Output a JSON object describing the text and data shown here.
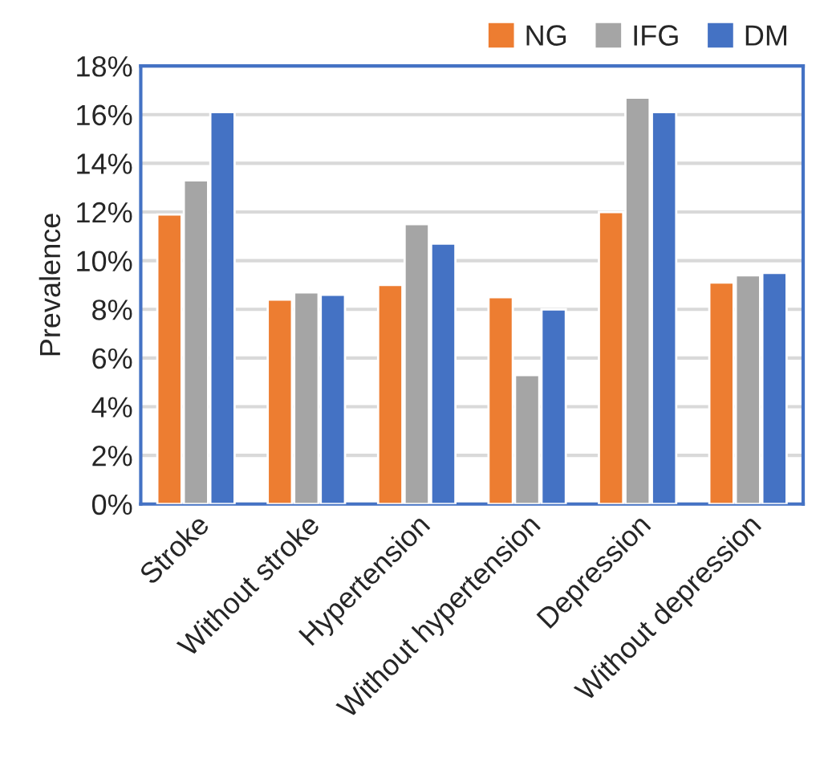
{
  "chart_data": {
    "type": "bar",
    "ylabel": "Prevalence",
    "categories": [
      "Stroke",
      "Without stroke",
      "Hypertension",
      "Without hypertension",
      "Depression",
      "Without depression"
    ],
    "series": [
      {
        "name": "NG",
        "color": "#ed7d31",
        "values": [
          11.9,
          8.4,
          9.0,
          8.5,
          12.0,
          9.1
        ]
      },
      {
        "name": "IFG",
        "color": "#a5a5a5",
        "values": [
          13.3,
          8.7,
          11.5,
          5.3,
          16.7,
          9.4
        ]
      },
      {
        "name": "DM",
        "color": "#4472c4",
        "values": [
          16.1,
          8.6,
          10.7,
          8.0,
          16.1,
          9.5
        ]
      }
    ],
    "ylim": [
      0,
      18
    ],
    "yticks": [
      {
        "value": 0,
        "label": "0%"
      },
      {
        "value": 2,
        "label": "2%"
      },
      {
        "value": 4,
        "label": "4%"
      },
      {
        "value": 6,
        "label": "6%"
      },
      {
        "value": 8,
        "label": "8%"
      },
      {
        "value": 10,
        "label": "10%"
      },
      {
        "value": 12,
        "label": "12%"
      },
      {
        "value": 14,
        "label": "14%"
      },
      {
        "value": 16,
        "label": "16%"
      },
      {
        "value": 18,
        "label": "18%"
      }
    ],
    "grid": "y",
    "legend": "top right"
  }
}
